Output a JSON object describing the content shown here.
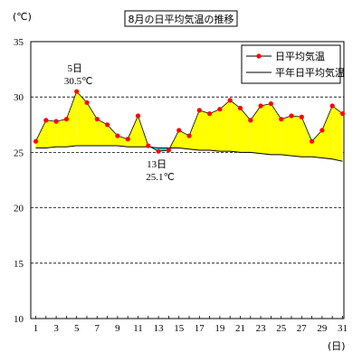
{
  "chart_data": {
    "type": "area",
    "title": "8月の日平均気温の推移",
    "y_unit": "(℃)",
    "x_unit": "(日)",
    "ylim": [
      10,
      35
    ],
    "yticks": [
      10,
      15,
      20,
      25,
      30,
      35
    ],
    "x": [
      1,
      2,
      3,
      4,
      5,
      6,
      7,
      8,
      9,
      10,
      11,
      12,
      13,
      14,
      15,
      16,
      17,
      18,
      19,
      20,
      21,
      22,
      23,
      24,
      25,
      26,
      27,
      28,
      29,
      30,
      31
    ],
    "grid": "horizontal dashed at 15, 20, 25, 30",
    "legend_position": "top-right",
    "series": [
      {
        "name": "日平均気温",
        "color": "#ff0000",
        "values": [
          26.0,
          27.9,
          27.8,
          28.0,
          30.5,
          29.5,
          28.0,
          27.5,
          26.5,
          26.2,
          28.3,
          25.6,
          25.1,
          25.2,
          27.0,
          26.5,
          28.8,
          28.5,
          28.9,
          29.7,
          29.0,
          27.9,
          29.2,
          29.4,
          28.0,
          28.3,
          28.2,
          26.0,
          27.0,
          29.2,
          28.5
        ]
      },
      {
        "name": "平年日平均気温",
        "color": "#000000",
        "values": [
          25.4,
          25.4,
          25.5,
          25.5,
          25.6,
          25.6,
          25.6,
          25.6,
          25.6,
          25.5,
          25.5,
          25.5,
          25.4,
          25.4,
          25.4,
          25.3,
          25.2,
          25.2,
          25.1,
          25.1,
          25.0,
          25.0,
          24.9,
          24.8,
          24.8,
          24.7,
          24.6,
          24.6,
          24.5,
          24.4,
          24.2
        ]
      }
    ],
    "fill_above_color": "#ffff00",
    "fill_below_color": "#00ffff",
    "annotations": [
      {
        "day": 5,
        "line1": "5日",
        "line2": "30.5℃",
        "position": "above"
      },
      {
        "day": 13,
        "line1": "13日",
        "line2": "25.1℃",
        "position": "below"
      }
    ]
  }
}
